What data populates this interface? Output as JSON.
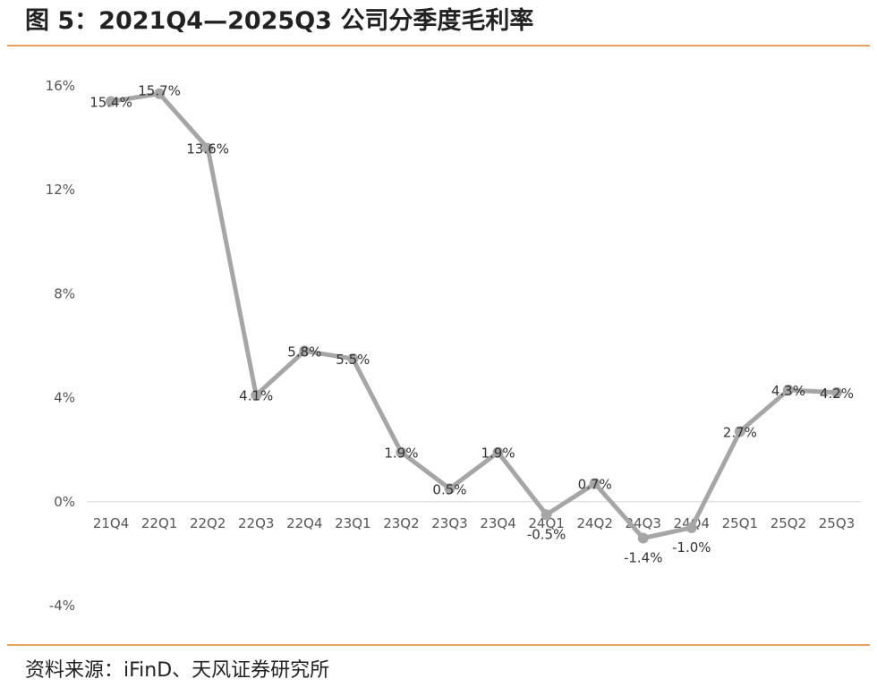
{
  "figure": {
    "title": "图 5：2021Q4—2025Q3 公司分季度毛利率",
    "source": "资料来源：iFinD、天风证券研究所"
  },
  "chart_data": {
    "type": "line",
    "title": "",
    "xlabel": "",
    "ylabel": "",
    "categories": [
      "21Q4",
      "22Q1",
      "22Q2",
      "22Q3",
      "22Q4",
      "23Q1",
      "23Q2",
      "23Q3",
      "23Q4",
      "24Q1",
      "24Q2",
      "24Q3",
      "24Q4",
      "25Q1",
      "25Q2",
      "25Q3"
    ],
    "series": [
      {
        "values": [
          15.4,
          15.7,
          13.6,
          4.1,
          5.8,
          5.5,
          1.9,
          0.5,
          1.9,
          -0.5,
          0.7,
          -1.4,
          -1.0,
          2.7,
          4.3,
          4.2
        ],
        "value_labels": [
          "15.4%",
          "15.7%",
          "13.6%",
          "4.1%",
          "5.8%",
          "5.5%",
          "1.9%",
          "0.5%",
          "1.9%",
          "-0.5%",
          "0.7%",
          "-1.4%",
          "-1.0%",
          "2.7%",
          "4.3%",
          "4.2%"
        ]
      }
    ],
    "ylim": [
      -4,
      16
    ],
    "yticks": [
      16,
      12,
      8,
      4,
      0,
      -4
    ],
    "ytick_labels": [
      "16%",
      "12%",
      "8%",
      "4%",
      "0%",
      "-4%"
    ],
    "grid": false,
    "legend": "none",
    "colors": {
      "line": "#a6a6a6",
      "axis": "#d9d9d9",
      "rule": "#e7a15b"
    }
  }
}
